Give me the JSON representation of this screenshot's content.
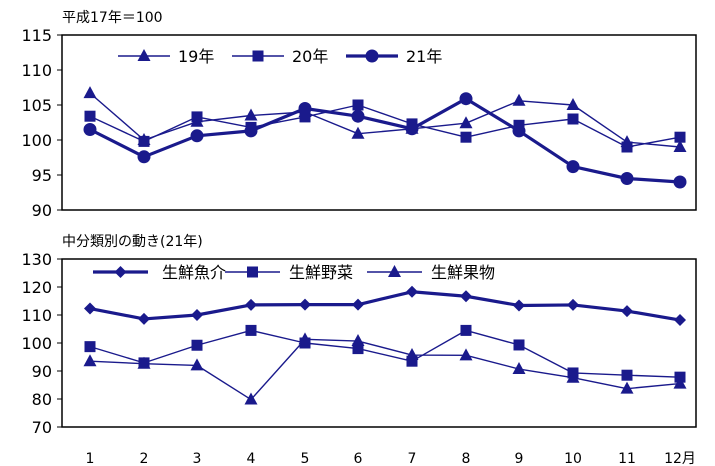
{
  "x_axis": {
    "ticks": [
      "1",
      "2",
      "3",
      "4",
      "5",
      "6",
      "7",
      "8",
      "9",
      "10",
      "11",
      "12月"
    ]
  },
  "chart_data": [
    {
      "type": "line",
      "title": "平成17年＝100",
      "x": [
        1,
        2,
        3,
        4,
        5,
        6,
        7,
        8,
        9,
        10,
        11,
        12
      ],
      "x_tick_labels": [
        "1",
        "2",
        "3",
        "4",
        "5",
        "6",
        "7",
        "8",
        "9",
        "10",
        "11",
        "12月"
      ],
      "ylim": [
        90,
        115
      ],
      "y_ticks": [
        90,
        95,
        100,
        105,
        110,
        115
      ],
      "grid": false,
      "legend_position": "top-left inside plot",
      "series": [
        {
          "name": "19年",
          "marker": "triangle",
          "line_weight": "thin",
          "color": "#1a1a8c",
          "values": [
            106.7,
            100.0,
            102.6,
            103.5,
            104.0,
            100.9,
            101.6,
            102.4,
            105.6,
            105.0,
            99.7,
            99.0
          ]
        },
        {
          "name": "20年",
          "marker": "square",
          "line_weight": "thin",
          "color": "#1a1a8c",
          "values": [
            103.4,
            99.8,
            103.3,
            101.8,
            103.3,
            105.0,
            102.3,
            100.4,
            102.1,
            103.0,
            99.0,
            100.4
          ]
        },
        {
          "name": "21年",
          "marker": "circle",
          "line_weight": "thick",
          "color": "#1a1a8c",
          "values": [
            101.5,
            97.6,
            100.6,
            101.3,
            104.5,
            103.4,
            101.6,
            105.9,
            101.3,
            96.2,
            94.5,
            94.0
          ]
        }
      ]
    },
    {
      "type": "line",
      "title": "中分類別の動き(21年)",
      "x": [
        1,
        2,
        3,
        4,
        5,
        6,
        7,
        8,
        9,
        10,
        11,
        12
      ],
      "x_tick_labels": [
        "1",
        "2",
        "3",
        "4",
        "5",
        "6",
        "7",
        "8",
        "9",
        "10",
        "11",
        "12月"
      ],
      "ylim": [
        70,
        130
      ],
      "y_ticks": [
        70,
        80,
        90,
        100,
        110,
        120,
        130
      ],
      "grid": false,
      "legend_position": "top-left inside plot",
      "series": [
        {
          "name": "生鮮魚介",
          "marker": "diamond",
          "line_weight": "thick",
          "color": "#1a1a8c",
          "values": [
            112.3,
            108.6,
            110.0,
            113.6,
            113.7,
            113.7,
            118.3,
            116.7,
            113.4,
            113.6,
            111.4,
            108.2
          ]
        },
        {
          "name": "生鮮野菜",
          "marker": "square",
          "line_weight": "thin",
          "color": "#1a1a8c",
          "values": [
            98.7,
            92.9,
            99.2,
            104.5,
            100.0,
            98.0,
            93.5,
            104.5,
            99.3,
            89.3,
            88.5,
            87.8
          ]
        },
        {
          "name": "生鮮果物",
          "marker": "triangle",
          "line_weight": "thin",
          "color": "#1a1a8c",
          "values": [
            93.5,
            92.6,
            92.0,
            79.8,
            101.3,
            100.7,
            95.7,
            95.6,
            90.7,
            87.6,
            83.7,
            85.5
          ]
        }
      ]
    }
  ]
}
